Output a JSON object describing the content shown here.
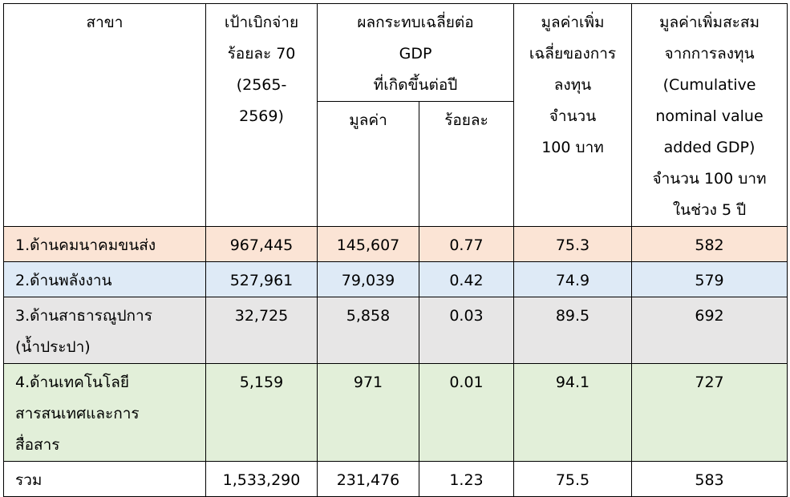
{
  "table": {
    "header": {
      "branch": [
        "สาขา"
      ],
      "target": [
        "เป้าเบิกจ่าย",
        "ร้อยละ 70",
        "(2565-",
        "2569)"
      ],
      "gdp_impact": [
        "ผลกระทบเฉลี่ยต่อ",
        "GDP",
        "ที่เกิดขึ้นต่อปี"
      ],
      "gdp_value": "มูลค่า",
      "gdp_percent": "ร้อยละ",
      "avg_value_added": [
        "มูลค่าเพิ่ม",
        "เฉลี่ยของการ",
        "ลงทุน",
        "จำนวน",
        "100 บาท"
      ],
      "cumulative": [
        "มูลค่าเพิ่มสะสม",
        "จากการลงทุน",
        "(Cumulative",
        "nominal value",
        "added GDP)",
        "จำนวน 100 บาท",
        "ในช่วง 5 ปี"
      ]
    },
    "rows": [
      [
        [
          "1.ด้านคมนาคมขนส่ง"
        ],
        "967,445",
        "145,607",
        "0.77",
        "75.3",
        "582"
      ],
      [
        [
          "2.ด้านพลังงาน"
        ],
        "527,961",
        "79,039",
        "0.42",
        "74.9",
        "579"
      ],
      [
        [
          "3.ด้านสาธารณูปการ",
          "(น้ำประปา)"
        ],
        "32,725",
        "5,858",
        "0.03",
        "89.5",
        "692"
      ],
      [
        [
          "4.ด้านเทคโนโลยี",
          "สารสนเทศและการ",
          "สื่อสาร"
        ],
        "5,159",
        "971",
        "0.01",
        "94.1",
        "727"
      ],
      [
        [
          "รวม"
        ],
        "1,533,290",
        "231,476",
        "1.23",
        "75.5",
        "583"
      ]
    ]
  }
}
